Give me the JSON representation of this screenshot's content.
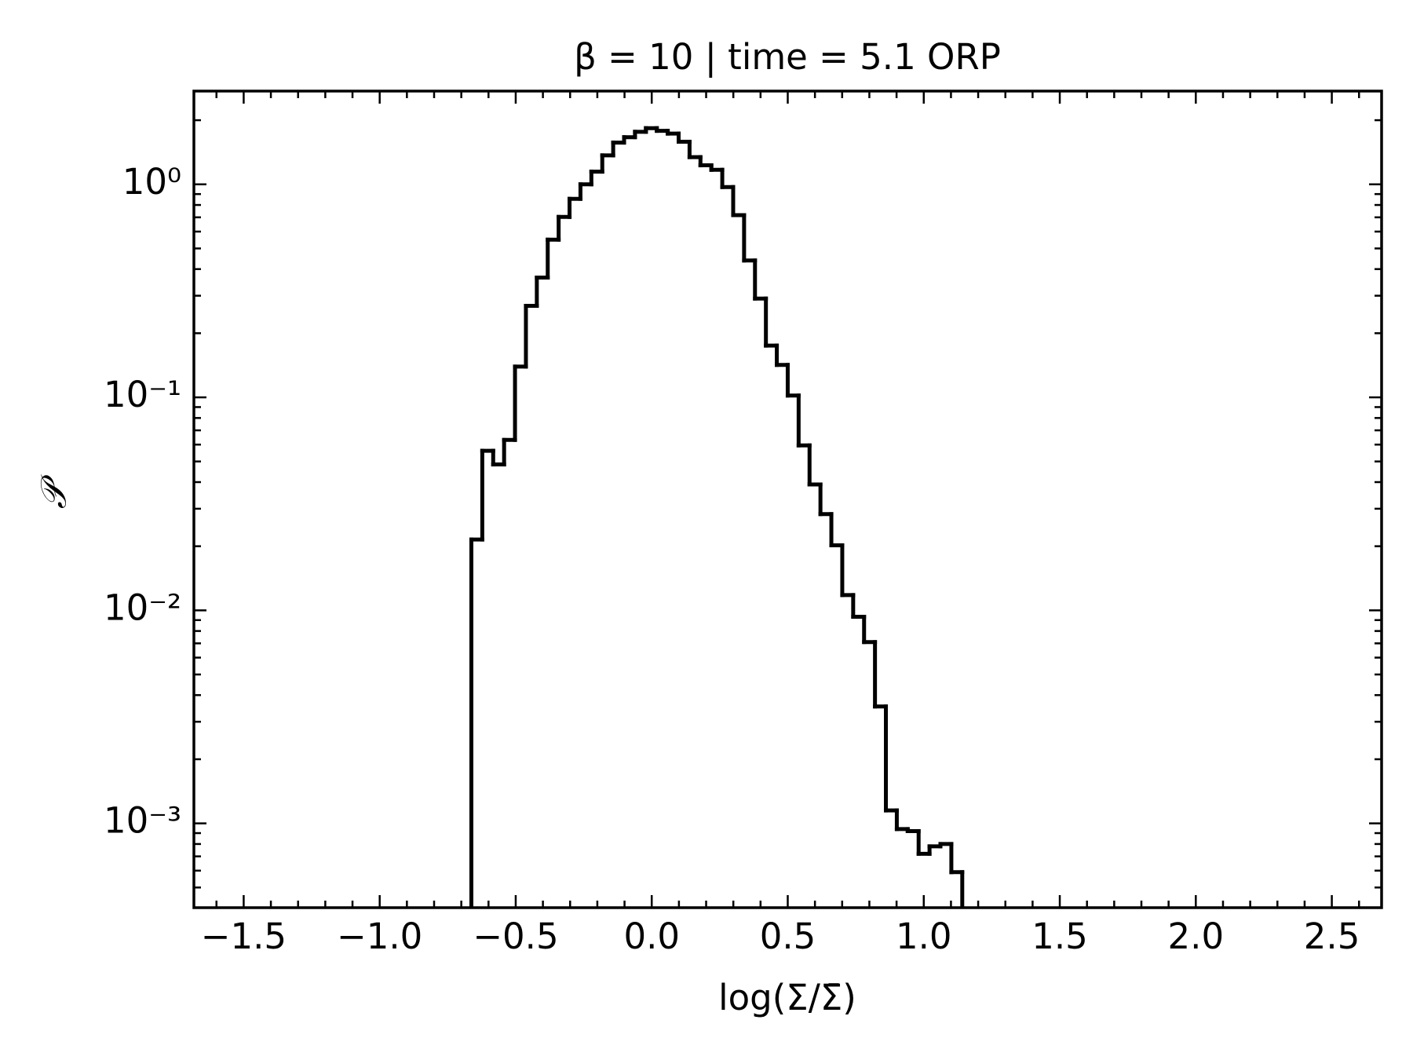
{
  "chart_data": {
    "type": "histogram",
    "title": "β = 10 | time = 5.1 ORP",
    "xlabel": "log(Σ/Σ̄)",
    "ylabel": "𝒫",
    "color": "#000000",
    "log_y": true,
    "grid": false,
    "tick_direction": "in",
    "mirror_ticks": true,
    "bins": [
      -0.663,
      -0.6229,
      -0.5828,
      -0.5427,
      -0.5026,
      -0.4625,
      -0.4224,
      -0.3823,
      -0.3422,
      -0.3021,
      -0.262,
      -0.2219,
      -0.1818,
      -0.1417,
      -0.1016,
      -0.0615,
      -0.0214,
      0.0187,
      0.0588,
      0.0989,
      0.139,
      0.1791,
      0.2192,
      0.2593,
      0.2994,
      0.3395,
      0.3796,
      0.4197,
      0.4598,
      0.4999,
      0.54,
      0.5801,
      0.6202,
      0.6603,
      0.7004,
      0.7405,
      0.7806,
      0.8207,
      0.8608,
      0.9009,
      0.941,
      0.9811,
      1.0212,
      1.0613,
      1.1014,
      1.1415
    ],
    "values": [
      0.0215,
      0.0561,
      0.0484,
      0.0631,
      0.1395,
      0.269,
      0.365,
      0.55,
      0.703,
      0.855,
      1.0,
      1.147,
      1.368,
      1.57,
      1.665,
      1.765,
      1.835,
      1.783,
      1.73,
      1.585,
      1.342,
      1.228,
      1.17,
      0.971,
      0.717,
      0.439,
      0.291,
      0.175,
      0.142,
      0.102,
      0.0595,
      0.039,
      0.0283,
      0.0202,
      0.0118,
      0.00933,
      0.0071,
      0.00354,
      0.00115,
      0.00094,
      0.00092,
      0.00072,
      0.00078,
      0.0008,
      0.00059
    ],
    "xlim": [
      -1.683,
      2.683
    ],
    "ylim": [
      0.000402,
      2.74
    ],
    "xticks": [
      {
        "value": -1.5,
        "label": "−1.5"
      },
      {
        "value": -1.0,
        "label": "−1.0"
      },
      {
        "value": -0.5,
        "label": "−0.5"
      },
      {
        "value": 0,
        "label": "0.0"
      },
      {
        "value": 0.5,
        "label": "0.5"
      },
      {
        "value": 1.0,
        "label": "1.0"
      },
      {
        "value": 1.5,
        "label": "1.5"
      },
      {
        "value": 2.0,
        "label": "2.0"
      },
      {
        "value": 2.5,
        "label": "2.5"
      }
    ],
    "yticks": [
      {
        "value": 0.001,
        "label": "10⁻³"
      },
      {
        "value": 0.01,
        "label": "10⁻²"
      },
      {
        "value": 0.1,
        "label": "10⁻¹"
      },
      {
        "value": 1,
        "label": "10⁰"
      }
    ],
    "xminorticks": [
      -1.6,
      -1.4,
      -1.3,
      -1.2,
      -1.1,
      -0.9,
      -0.8,
      -0.7,
      -0.6,
      -0.4,
      -0.3,
      -0.2,
      -0.1,
      0.1,
      0.2,
      0.3,
      0.4,
      0.6,
      0.7,
      0.8,
      0.9,
      1.1,
      1.2,
      1.3,
      1.4,
      1.6,
      1.7,
      1.8,
      1.9,
      2.1,
      2.2,
      2.3,
      2.4,
      2.6
    ],
    "yminorticks": [
      0.0005,
      0.0006,
      0.0007,
      0.0008,
      0.0009,
      0.002,
      0.003,
      0.004,
      0.005,
      0.006,
      0.007,
      0.008,
      0.009,
      0.02,
      0.03,
      0.04,
      0.05,
      0.06,
      0.07,
      0.08,
      0.09,
      0.2,
      0.3,
      0.4,
      0.5,
      0.6,
      0.7,
      0.8,
      0.9,
      2
    ]
  }
}
